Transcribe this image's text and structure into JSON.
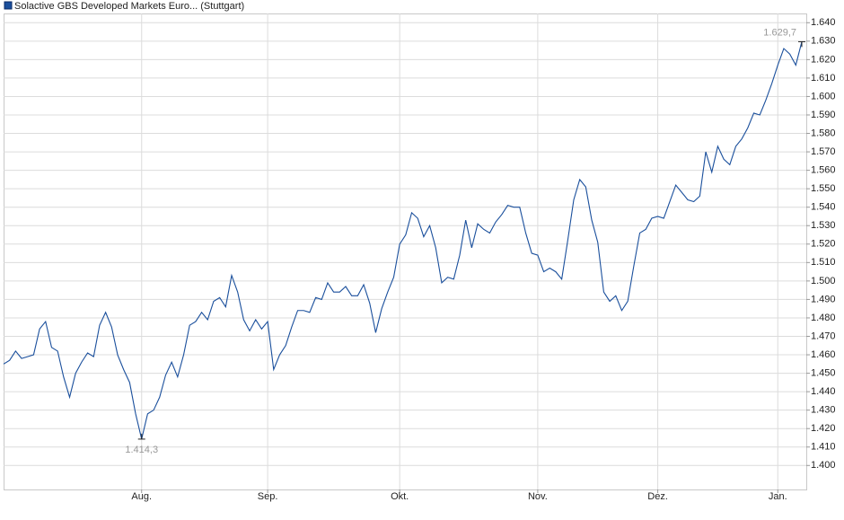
{
  "chart_data": {
    "type": "line",
    "categories": [
      null,
      null,
      null,
      null,
      null,
      null,
      null,
      null,
      null,
      null,
      null,
      null,
      null,
      null,
      null,
      null,
      null,
      null,
      null,
      null,
      null,
      null,
      null,
      "Aug.",
      null,
      null,
      null,
      null,
      null,
      null,
      null,
      null,
      null,
      null,
      null,
      null,
      null,
      null,
      null,
      null,
      null,
      null,
      null,
      null,
      "Sep.",
      null,
      null,
      null,
      null,
      null,
      null,
      null,
      null,
      null,
      null,
      null,
      null,
      null,
      null,
      null,
      null,
      null,
      null,
      null,
      null,
      null,
      "Okt.",
      null,
      null,
      null,
      null,
      null,
      null,
      null,
      null,
      null,
      null,
      null,
      null,
      null,
      null,
      null,
      null,
      null,
      null,
      null,
      null,
      null,
      null,
      "Nov.",
      null,
      null,
      null,
      null,
      null,
      null,
      null,
      null,
      null,
      null,
      null,
      null,
      null,
      null,
      null,
      null,
      null,
      null,
      null,
      "Dez.",
      null,
      null,
      null,
      null,
      null,
      null,
      null,
      null,
      null,
      null,
      null,
      null,
      null,
      null,
      null,
      null,
      null,
      null,
      null,
      "Jan.",
      null,
      null,
      null,
      null
    ],
    "series": [
      {
        "name": "Solactive GBS Developed Markets Euro... (Stuttgart)",
        "color": "#1a4f9c",
        "values": [
          1455,
          1457,
          1462,
          1458,
          1459,
          1460,
          1474,
          1478,
          1464,
          1462,
          1448,
          1437,
          1450,
          1456,
          1461,
          1459,
          1476,
          1483,
          1475,
          1460,
          1452,
          1445,
          1428,
          1414.3,
          1428,
          1430,
          1437,
          1449,
          1456,
          1448,
          1460,
          1476,
          1478,
          1483,
          1479,
          1489,
          1491,
          1486,
          1503,
          1494,
          1479,
          1473,
          1479,
          1474,
          1478,
          1452,
          1460,
          1465,
          1475,
          1484,
          1484,
          1483,
          1491,
          1490,
          1499,
          1494,
          1494,
          1497,
          1492,
          1492,
          1498,
          1488,
          1472,
          1485,
          1494,
          1502,
          1520,
          1525,
          1537,
          1534,
          1524,
          1530,
          1518,
          1499,
          1502,
          1501,
          1514,
          1533,
          1518,
          1531,
          1528,
          1526,
          1532,
          1536,
          1541,
          1540,
          1540,
          1526,
          1515,
          1514,
          1505,
          1507,
          1505,
          1501,
          1522,
          1544,
          1555,
          1551,
          1533,
          1521,
          1494,
          1489,
          1492,
          1484,
          1489,
          1508,
          1526,
          1528,
          1534,
          1535,
          1534,
          1543,
          1552,
          1548,
          1544,
          1543,
          1546,
          1570,
          1559,
          1573,
          1566,
          1563,
          1573,
          1577,
          1583,
          1591,
          1590,
          1598,
          1607,
          1617,
          1626,
          1623,
          1617,
          1629.7
        ],
        "value_labels": [
          null,
          null,
          null,
          null,
          null,
          null,
          null,
          null,
          null,
          null,
          null,
          null,
          null,
          null,
          null,
          null,
          null,
          null,
          null,
          null,
          null,
          null,
          null,
          "1.414,3",
          null,
          null,
          null,
          null,
          null,
          null,
          null,
          null,
          null,
          null,
          null,
          null,
          null,
          null,
          null,
          null,
          null,
          null,
          null,
          null,
          null,
          null,
          null,
          null,
          null,
          null,
          null,
          null,
          null,
          null,
          null,
          null,
          null,
          null,
          null,
          null,
          null,
          null,
          null,
          null,
          null,
          null,
          null,
          null,
          null,
          null,
          null,
          null,
          null,
          null,
          null,
          null,
          null,
          null,
          null,
          null,
          null,
          null,
          null,
          null,
          null,
          null,
          null,
          null,
          null,
          null,
          null,
          null,
          null,
          null,
          null,
          null,
          null,
          null,
          null,
          null,
          null,
          null,
          null,
          null,
          null,
          null,
          null,
          null,
          null,
          null,
          null,
          null,
          null,
          null,
          null,
          null,
          null,
          null,
          null,
          null,
          null,
          null,
          null,
          null,
          null,
          null,
          null,
          null,
          null,
          null,
          null,
          null,
          null,
          "1.629,7"
        ]
      }
    ],
    "ylim": [
      1387,
      1645
    ],
    "yticks": [
      {
        "value": 1400,
        "label": "1.400"
      },
      {
        "value": 1410,
        "label": "1.410"
      },
      {
        "value": 1420,
        "label": "1.420"
      },
      {
        "value": 1430,
        "label": "1.430"
      },
      {
        "value": 1440,
        "label": "1.440"
      },
      {
        "value": 1450,
        "label": "1.450"
      },
      {
        "value": 1460,
        "label": "1.460"
      },
      {
        "value": 1470,
        "label": "1.470"
      },
      {
        "value": 1480,
        "label": "1.480"
      },
      {
        "value": 1490,
        "label": "1.490"
      },
      {
        "value": 1500,
        "label": "1.500"
      },
      {
        "value": 1510,
        "label": "1.510"
      },
      {
        "value": 1520,
        "label": "1.520"
      },
      {
        "value": 1530,
        "label": "1.530"
      },
      {
        "value": 1540,
        "label": "1.540"
      },
      {
        "value": 1550,
        "label": "1.550"
      },
      {
        "value": 1560,
        "label": "1.560"
      },
      {
        "value": 1570,
        "label": "1.570"
      },
      {
        "value": 1580,
        "label": "1.580"
      },
      {
        "value": 1590,
        "label": "1.590"
      },
      {
        "value": 1600,
        "label": "1.600"
      },
      {
        "value": 1610,
        "label": "1.610"
      },
      {
        "value": 1620,
        "label": "1.620"
      },
      {
        "value": 1630,
        "label": "1.630"
      },
      {
        "value": 1640,
        "label": "1.640"
      }
    ],
    "grid": true
  }
}
